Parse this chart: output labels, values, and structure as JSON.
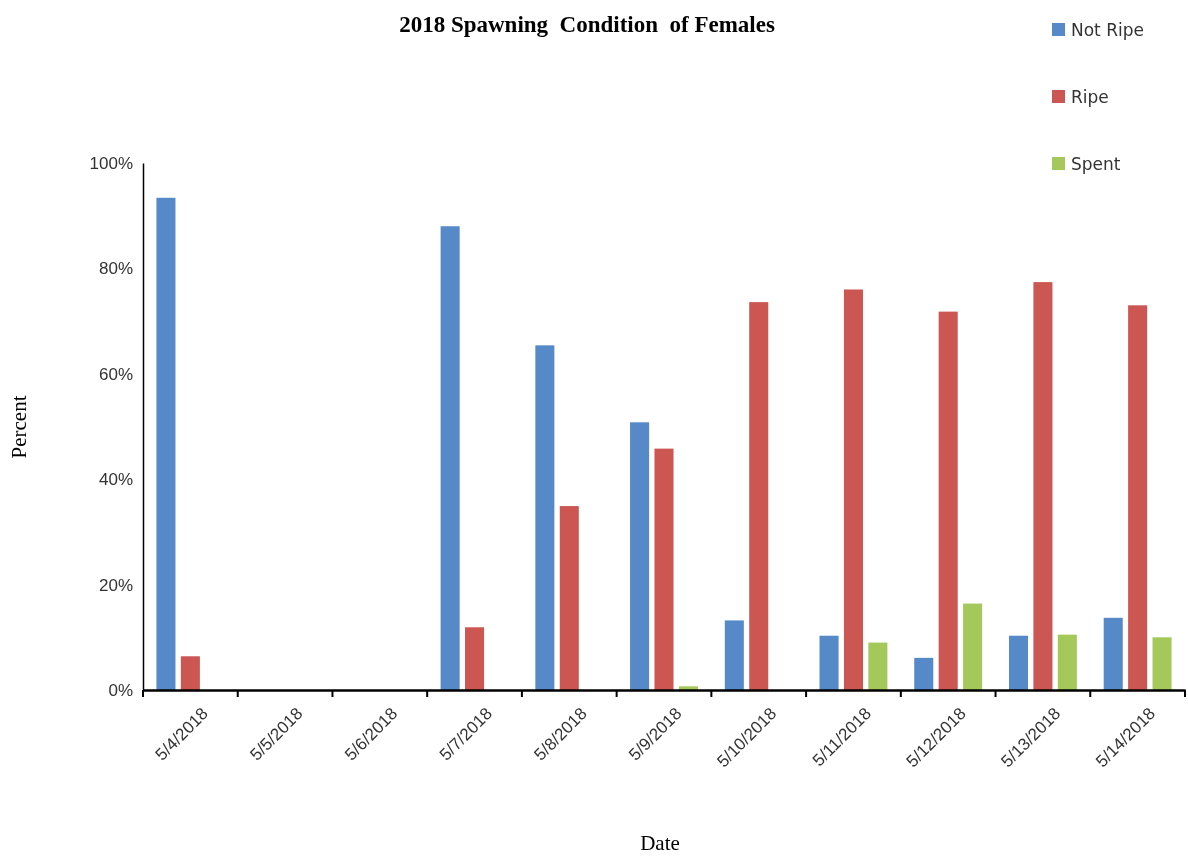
{
  "chart_data": {
    "type": "bar",
    "title": "2018 Spawning  Condition  of Females",
    "xlabel": "Date",
    "ylabel": "Percent",
    "categories": [
      "5/4/2018",
      "5/5/2018",
      "5/6/2018",
      "5/7/2018",
      "5/8/2018",
      "5/9/2018",
      "5/10/2018",
      "5/11/2018",
      "5/12/2018",
      "5/13/2018",
      "5/14/2018"
    ],
    "series": [
      {
        "name": "Not Ripe",
        "color": "#5689c8",
        "values": [
          93.4,
          null,
          null,
          88.0,
          65.4,
          50.8,
          13.2,
          10.3,
          6.1,
          10.3,
          13.7
        ]
      },
      {
        "name": "Ripe",
        "color": "#cc5652",
        "values": [
          6.4,
          null,
          null,
          11.9,
          34.9,
          45.8,
          73.6,
          76.0,
          71.8,
          77.4,
          73.0
        ]
      },
      {
        "name": "Spent",
        "color": "#a5c85a",
        "values": [
          0,
          null,
          null,
          0,
          0,
          0.7,
          0,
          9.0,
          16.4,
          10.5,
          10.0
        ]
      }
    ],
    "ylim": [
      0,
      100
    ],
    "yticks": [
      {
        "value": 0,
        "label": "0%"
      },
      {
        "value": 20,
        "label": "20%"
      },
      {
        "value": 40,
        "label": "40%"
      },
      {
        "value": 60,
        "label": "60%"
      },
      {
        "value": 80,
        "label": "80%"
      },
      {
        "value": 100,
        "label": "100%"
      }
    ],
    "grid": false,
    "legend": "top right"
  }
}
